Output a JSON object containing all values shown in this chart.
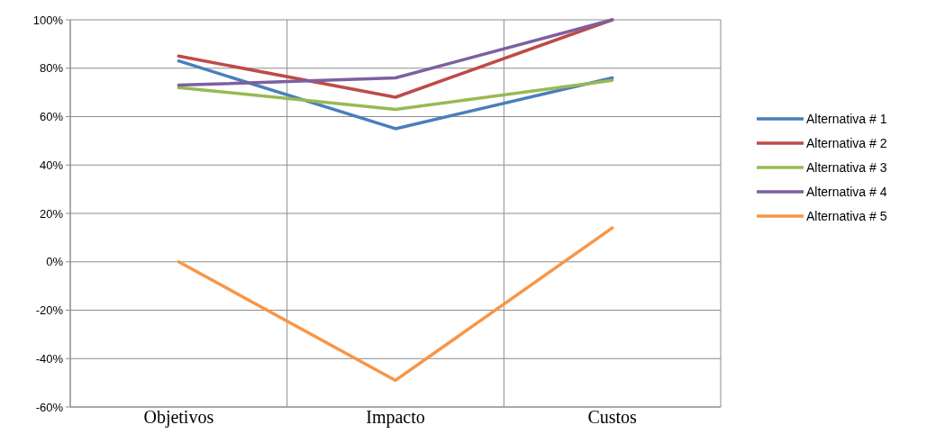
{
  "chart_data": {
    "type": "line",
    "categories": [
      "Objetivos",
      "Impacto",
      "Custos"
    ],
    "series": [
      {
        "name": "Alternativa # 1",
        "color": "#4a7ebb",
        "values": [
          83,
          55,
          76
        ]
      },
      {
        "name": "Alternativa # 2",
        "color": "#be4b48",
        "values": [
          85,
          68,
          100
        ]
      },
      {
        "name": "Alternativa # 3",
        "color": "#98b954",
        "values": [
          72,
          63,
          75
        ]
      },
      {
        "name": "Alternativa # 4",
        "color": "#7d60a0",
        "values": [
          73,
          76,
          100
        ]
      },
      {
        "name": "Alternativa  # 5",
        "color": "#f79646",
        "values": [
          0,
          -49,
          14
        ]
      }
    ],
    "ylim": [
      -60,
      100
    ],
    "yticks": [
      {
        "value": -60,
        "label": "-60%"
      },
      {
        "value": -40,
        "label": "-40%"
      },
      {
        "value": -20,
        "label": "-20%"
      },
      {
        "value": 0,
        "label": "0%"
      },
      {
        "value": 20,
        "label": "20%"
      },
      {
        "value": 40,
        "label": "40%"
      },
      {
        "value": 60,
        "label": "60%"
      },
      {
        "value": 80,
        "label": "80%"
      },
      {
        "value": 100,
        "label": "100%"
      }
    ],
    "grid": true,
    "legend": "right",
    "marker": "none",
    "line_style": "solid"
  }
}
